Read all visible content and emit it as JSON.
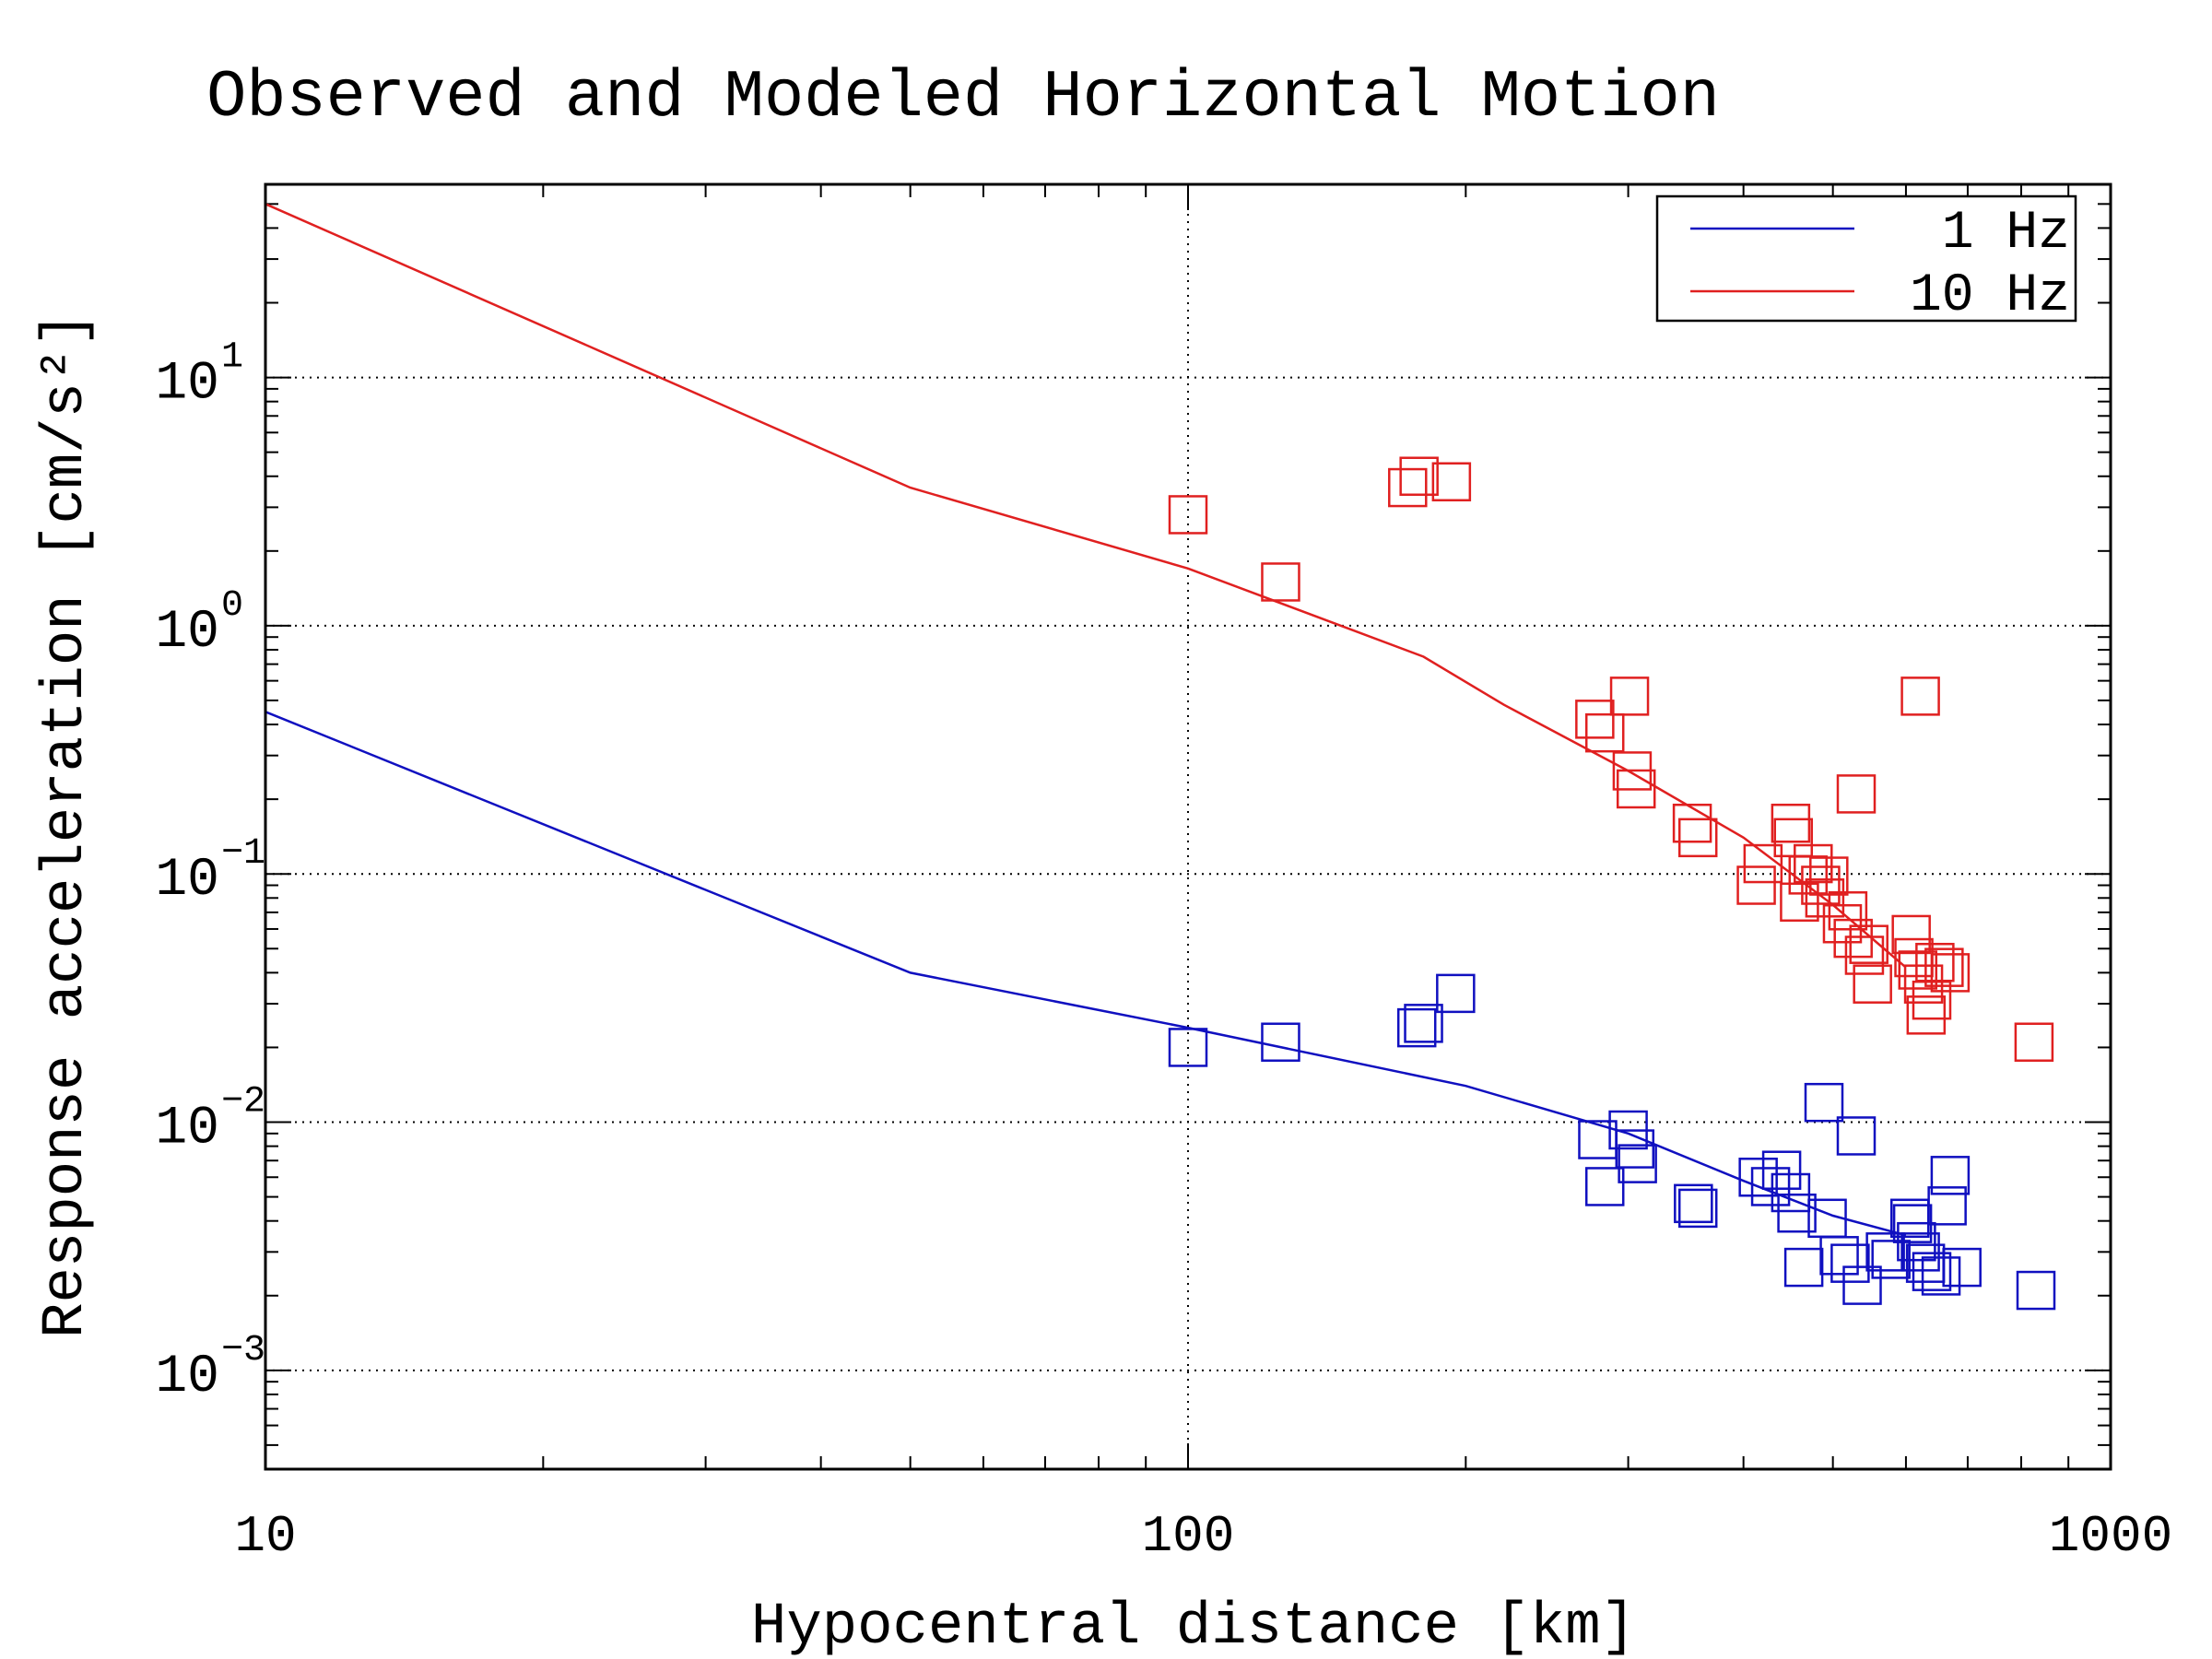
{
  "chart_data": {
    "type": "scatter",
    "title": "Observed and Modeled Horizontal Motion",
    "xlabel": "Hypocentral distance [km]",
    "ylabel": "Response acceleration [cm/s²]",
    "x_scale": "log",
    "y_scale": "log",
    "xlim": [
      10,
      1000
    ],
    "ylim": [
      0.0004,
      60
    ],
    "x_ticks": [
      {
        "value": 10,
        "label": "10"
      },
      {
        "value": 100,
        "label": "100"
      },
      {
        "value": 1000,
        "label": "1000"
      }
    ],
    "y_ticks": [
      {
        "value": 0.001,
        "label": "10",
        "exp": "−3"
      },
      {
        "value": 0.01,
        "label": "10",
        "exp": "−2"
      },
      {
        "value": 0.1,
        "label": "10",
        "exp": "−1"
      },
      {
        "value": 1,
        "label": "10",
        "exp": "0"
      },
      {
        "value": 10,
        "label": "10",
        "exp": "1"
      }
    ],
    "grid": "dotted",
    "legend_position": "top-right",
    "series": [
      {
        "name": "1 Hz",
        "color": "#1010c0",
        "model": {
          "x": [
            10,
            50,
            100,
            200,
            300,
            400,
            500,
            600
          ],
          "y": [
            0.45,
            0.04,
            0.024,
            0.014,
            0.009,
            0.0058,
            0.0042,
            0.0035
          ]
        },
        "observed": {
          "x": [
            100,
            126,
            177,
            180,
            195,
            278,
            283,
            300,
            305,
            307,
            353,
            357,
            415,
            428,
            440,
            450,
            457,
            465,
            489,
            493,
            508,
            522,
            530,
            538,
            570,
            578,
            606,
            610,
            616,
            622,
            630,
            640,
            655,
            665,
            670,
            690,
            830
          ],
          "y": [
            0.02,
            0.021,
            0.024,
            0.025,
            0.033,
            0.0085,
            0.0055,
            0.0093,
            0.0078,
            0.0068,
            0.0047,
            0.0045,
            0.006,
            0.0055,
            0.0064,
            0.0052,
            0.0043,
            0.0026,
            0.012,
            0.0041,
            0.0029,
            0.0027,
            0.0088,
            0.0022,
            0.003,
            0.0028,
            0.0041,
            0.0039,
            0.0033,
            0.003,
            0.0027,
            0.0025,
            0.0024,
            0.0046,
            0.0061,
            0.0026,
            0.0021
          ]
        }
      },
      {
        "name": "10 Hz",
        "color": "#e02020",
        "model": {
          "x": [
            10,
            50,
            100,
            180,
            220,
            300,
            400,
            500,
            600
          ],
          "y": [
            50,
            3.6,
            1.7,
            0.75,
            0.48,
            0.26,
            0.14,
            0.075,
            0.042
          ]
        },
        "observed": {
          "x": [
            100,
            126,
            173,
            178,
            193,
            276,
            283,
            301,
            303,
            306,
            352,
            357,
            413,
            420,
            450,
            453,
            460,
            470,
            476,
            485,
            490,
            495,
            512,
            519,
            526,
            530,
            541,
            547,
            552,
            608,
            612,
            618,
            622,
            627,
            631,
            640,
            645,
            660,
            670,
            826
          ],
          "y": [
            2.8,
            1.5,
            3.6,
            4.0,
            3.8,
            0.42,
            0.37,
            0.52,
            0.26,
            0.22,
            0.16,
            0.14,
            0.09,
            0.11,
            0.16,
            0.14,
            0.077,
            0.099,
            0.11,
            0.09,
            0.08,
            0.098,
            0.063,
            0.071,
            0.055,
            0.21,
            0.047,
            0.052,
            0.036,
            0.057,
            0.046,
            0.041,
            0.52,
            0.036,
            0.027,
            0.031,
            0.044,
            0.042,
            0.04,
            0.021
          ]
        }
      }
    ]
  }
}
